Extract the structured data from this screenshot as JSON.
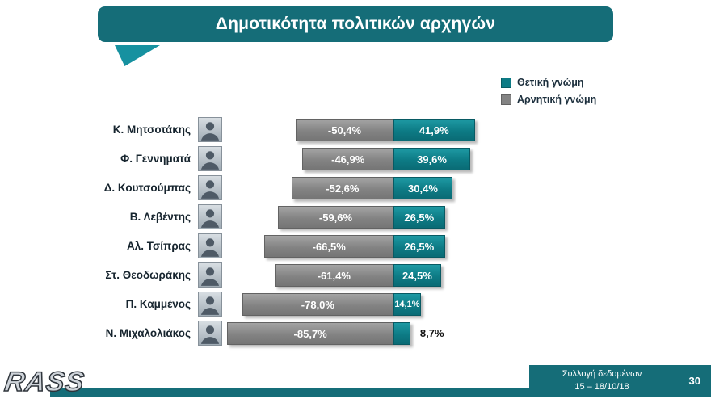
{
  "header": {
    "title": "Δημοτικότητα πολιτικών αρχηγών"
  },
  "chart_data": {
    "type": "bar",
    "orientation": "diverging-horizontal",
    "title": "Δημοτικότητα πολιτικών αρχηγών",
    "legend_position": "top-right",
    "xlim": [
      -100,
      60
    ],
    "categories": [
      "Κ. Μητσοτάκης",
      "Φ. Γεννηματά",
      "Δ. Κουτσούμπας",
      "Β. Λεβέντης",
      "Αλ. Τσίπρας",
      "Στ. Θεοδωράκης",
      "Π. Καμμένος",
      "Ν. Μιχαλολιάκος"
    ],
    "series": [
      {
        "name": "Θετική γνώμη",
        "color": "#0d7b85",
        "values": [
          41.9,
          39.6,
          30.4,
          26.5,
          26.5,
          24.5,
          14.1,
          8.7
        ],
        "labels": [
          "41,9%",
          "39,6%",
          "30,4%",
          "26,5%",
          "26,5%",
          "24,5%",
          "14,1%",
          "8,7%"
        ]
      },
      {
        "name": "Αρνητική γνώμη",
        "color": "#838383",
        "values": [
          -50.4,
          -46.9,
          -52.6,
          -59.6,
          -66.5,
          -61.4,
          -78.0,
          -85.7
        ],
        "labels": [
          "-50,4%",
          "-46,9%",
          "-52,6%",
          "-59,6%",
          "-66,5%",
          "-61,4%",
          "-78,0%",
          "-85,7%"
        ]
      }
    ]
  },
  "footer": {
    "logo": "RASS",
    "collection_label": "Συλλογή δεδομένων",
    "collection_dates": "15 – 18/10/18",
    "page_number": "30"
  }
}
